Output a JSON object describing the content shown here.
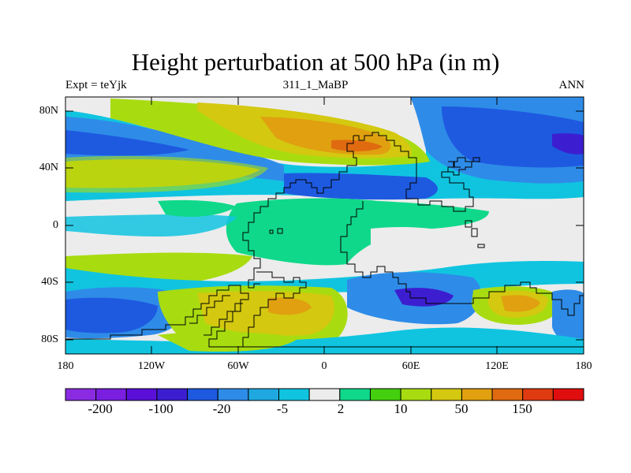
{
  "title": "Height perturbation at 500 hPa (in m)",
  "subtitle_left": "Expt = teYjk",
  "subtitle_center": "311_1_MaBP",
  "subtitle_right": "ANN",
  "lat_labels": [
    "80N",
    "40N",
    "0",
    "40S",
    "80S"
  ],
  "lon_labels": [
    "180",
    "120W",
    "60W",
    "0",
    "60E",
    "120E",
    "180"
  ],
  "colorbar": {
    "colors": [
      "#8a2be2",
      "#7a1fe0",
      "#5a10d8",
      "#3c1ed0",
      "#1e5ae0",
      "#2e8ce8",
      "#1fa8e0",
      "#10c4e0",
      "#ececec",
      "#10d88a",
      "#44d00e",
      "#a8dc10",
      "#d4c810",
      "#e0a010",
      "#e06a10",
      "#e03a10",
      "#e00e0e"
    ],
    "labels": [
      "-200",
      "-100",
      "-20",
      "-5",
      "2",
      "10",
      "50",
      "150"
    ]
  },
  "field_colors": {
    "deep_blue": "#3c1ed0",
    "blue": "#1e5ae0",
    "mid_blue": "#2e8ce8",
    "cyan": "#10c4e0",
    "neutral": "#ececec",
    "green": "#10d88a",
    "lime": "#a8dc10",
    "yellow": "#d4c810",
    "orange": "#e0a010",
    "dark_orange": "#e06a10"
  }
}
